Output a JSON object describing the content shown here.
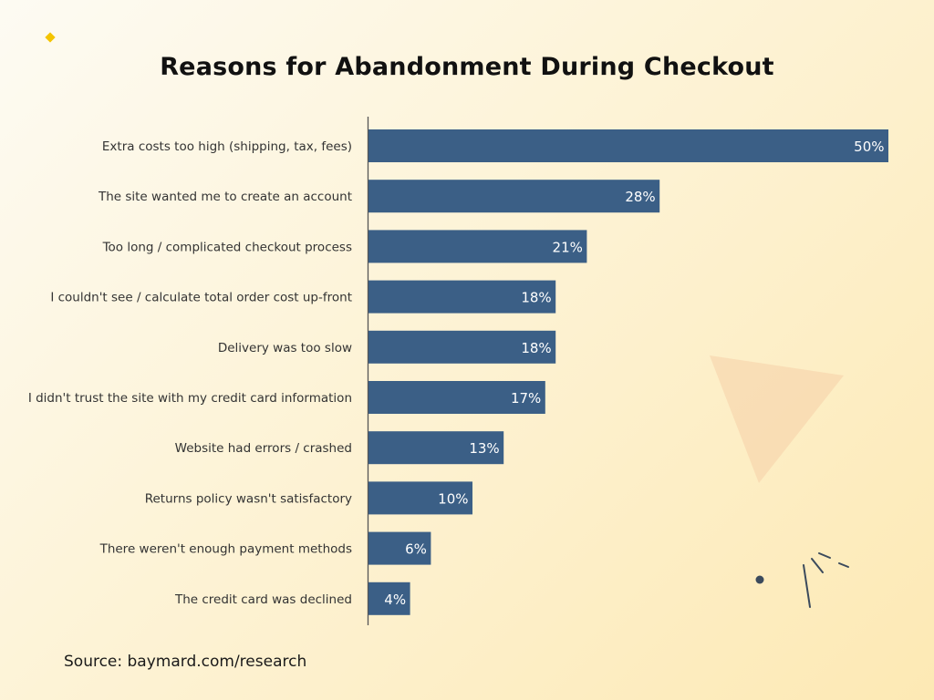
{
  "title": "Reasons for Abandonment During Checkout",
  "source": "Source: baymard.com/research",
  "colors": {
    "bar": "#3b5f86",
    "axis": "#555555",
    "accent": "#f4c400",
    "triangle": "#f6cfa8",
    "decor": "#3b4a5c"
  },
  "chart_data": {
    "type": "bar",
    "orientation": "horizontal",
    "title": "Reasons for Abandonment During Checkout",
    "categories": [
      "Extra costs too high (shipping, tax, fees)",
      "The site wanted me to create an account",
      "Too long / complicated checkout process",
      "I couldn't see / calculate total order cost up-front",
      "Delivery was too slow",
      "I didn't trust the site with my credit card information",
      "Website had errors / crashed",
      "Returns policy wasn't satisfactory",
      "There weren't enough payment methods",
      "The credit card was declined"
    ],
    "values": [
      50,
      28,
      21,
      18,
      18,
      17,
      13,
      10,
      6,
      4
    ],
    "value_labels": [
      "50%",
      "28%",
      "21%",
      "18%",
      "18%",
      "17%",
      "13%",
      "10%",
      "6%",
      "4%"
    ],
    "unit": "%",
    "xlim": [
      0,
      50
    ],
    "grid": false,
    "legend": "none"
  }
}
